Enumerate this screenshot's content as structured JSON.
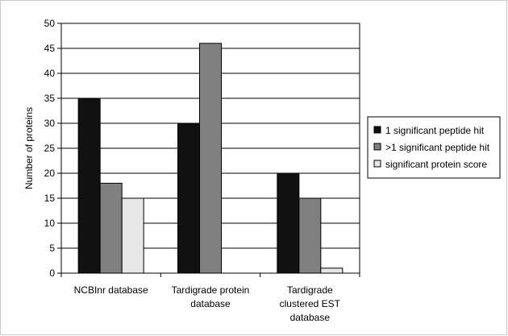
{
  "chart_data": {
    "type": "bar",
    "categories": [
      [
        "NCBInr database"
      ],
      [
        "Tardigrade protein",
        "database"
      ],
      [
        "Tardigrade",
        "clustered EST",
        "database"
      ]
    ],
    "series": [
      {
        "name": "1 significant peptide hit",
        "color": "#111111",
        "values": [
          35,
          30,
          20
        ]
      },
      {
        "name": ">1 significant peptide hit",
        "color": "#808080",
        "values": [
          18,
          46,
          15
        ]
      },
      {
        "name": "significant protein score",
        "color": "#e6e6e6",
        "values": [
          15,
          0,
          1
        ]
      }
    ],
    "ylabel": "Number of proteins",
    "xlabel": "",
    "ylim": [
      0,
      50
    ],
    "yticks": [
      0,
      5,
      10,
      15,
      20,
      25,
      30,
      35,
      40,
      45,
      50
    ],
    "grid": true,
    "legend_position": "right"
  }
}
